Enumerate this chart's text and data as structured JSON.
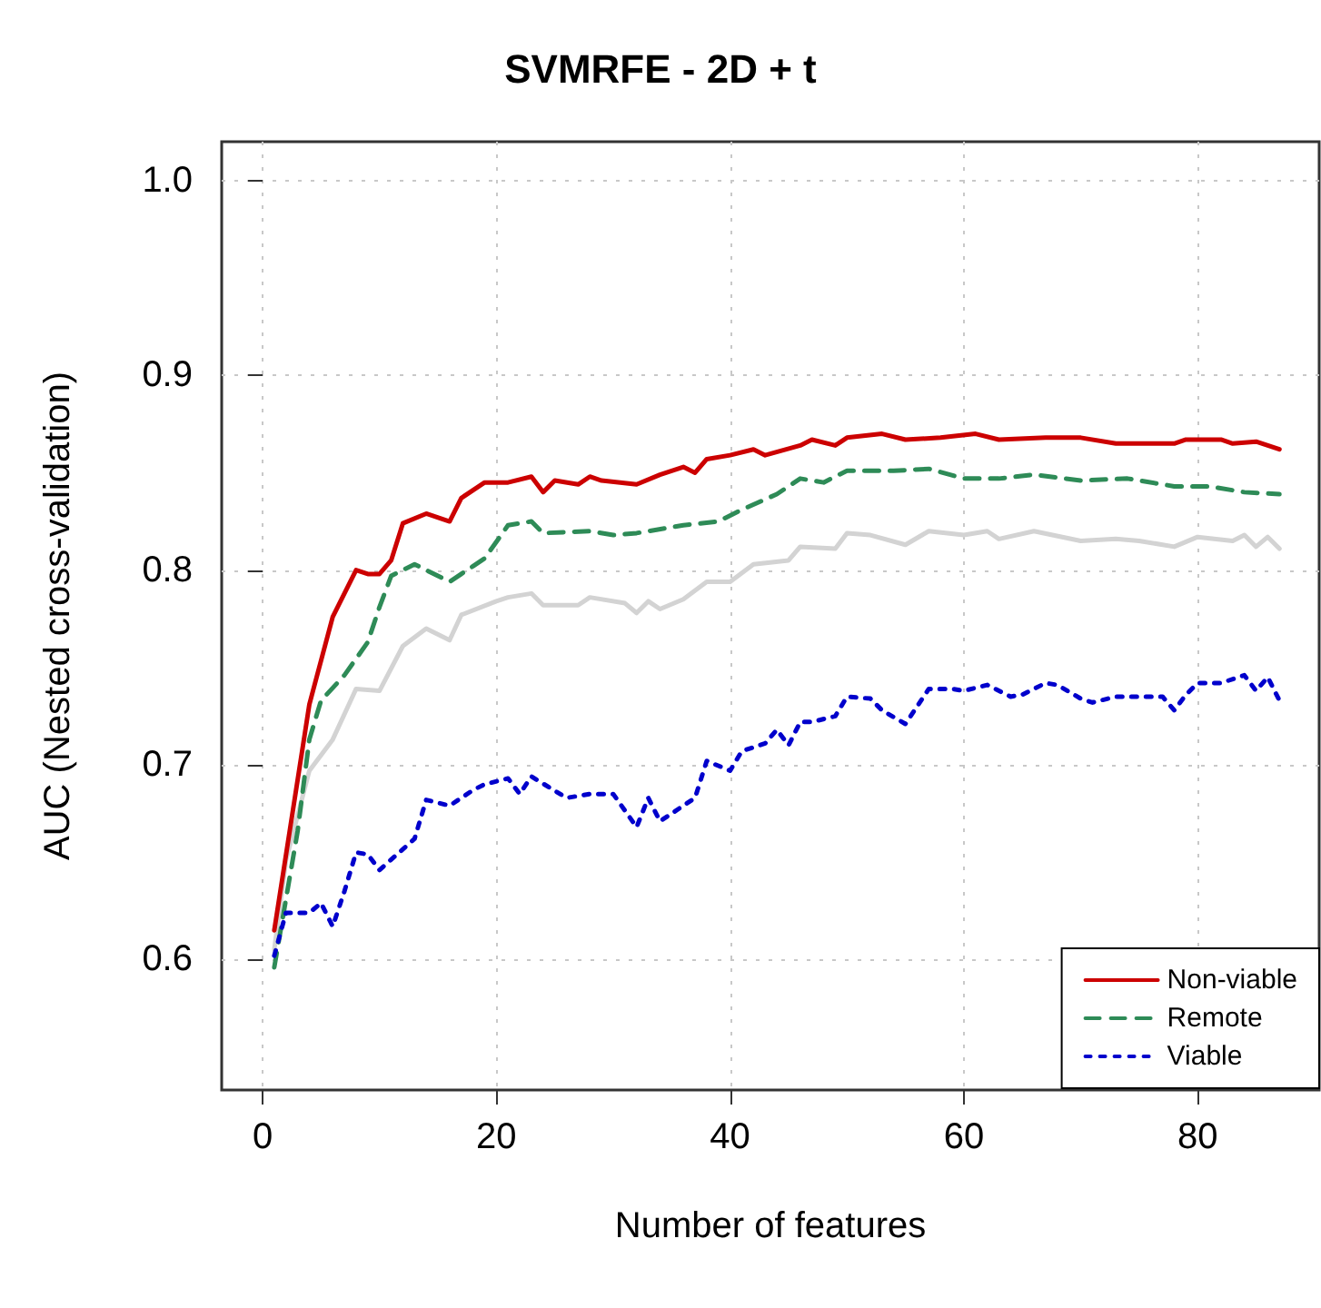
{
  "chart_data": {
    "type": "line",
    "title": "SVMRFE - 2D + t",
    "xlabel": "Number of features",
    "ylabel": "AUC (Nested cross-validation)",
    "xlim": [
      -3.5,
      90.4
    ],
    "xticks": [
      0,
      20,
      40,
      60,
      80
    ],
    "ylim": [
      0.533,
      1.02
    ],
    "yticks": [
      {
        "value": 0.6,
        "label": "0.6"
      },
      {
        "value": 0.7,
        "label": "0.7"
      },
      {
        "value": 0.8,
        "label": "0.8"
      },
      {
        "value": 0.9,
        "label": "0.9"
      },
      {
        "value": 1.0,
        "label": "1.0"
      }
    ],
    "grid": true,
    "legend": "bottom right",
    "marker": "none",
    "series": [
      {
        "name": "Non-viable",
        "color": "#cc0000",
        "line_style": "solid",
        "x": [
          1,
          4,
          6,
          8,
          9,
          10,
          11,
          12,
          14,
          16,
          17,
          19,
          21,
          23,
          24,
          25,
          27,
          28,
          29,
          32,
          34,
          36,
          37,
          38,
          40,
          42,
          43,
          46,
          47,
          49,
          50,
          53,
          55,
          58,
          61,
          63,
          67,
          70,
          73,
          78,
          79,
          82,
          83,
          85,
          87
        ],
        "values": [
          0.615,
          0.731,
          0.776,
          0.8,
          0.798,
          0.798,
          0.805,
          0.824,
          0.829,
          0.825,
          0.837,
          0.845,
          0.845,
          0.848,
          0.84,
          0.846,
          0.844,
          0.848,
          0.846,
          0.844,
          0.849,
          0.853,
          0.85,
          0.857,
          0.859,
          0.862,
          0.859,
          0.864,
          0.867,
          0.864,
          0.868,
          0.87,
          0.867,
          0.868,
          0.87,
          0.867,
          0.868,
          0.868,
          0.865,
          0.865,
          0.867,
          0.867,
          0.865,
          0.866,
          0.862
        ]
      },
      {
        "name": "Remote",
        "color": "#2e8b57",
        "line_style": "dashed",
        "x": [
          1,
          3,
          4,
          5,
          7,
          9,
          10,
          11,
          13,
          16,
          18,
          19,
          21,
          23,
          24,
          28,
          30,
          32,
          36,
          39,
          41,
          44,
          46,
          48,
          50,
          54,
          57,
          60,
          63,
          66,
          70,
          74,
          78,
          81,
          84,
          87
        ],
        "values": [
          0.596,
          0.666,
          0.713,
          0.733,
          0.746,
          0.763,
          0.781,
          0.797,
          0.803,
          0.794,
          0.802,
          0.806,
          0.823,
          0.825,
          0.819,
          0.82,
          0.818,
          0.819,
          0.823,
          0.825,
          0.831,
          0.839,
          0.847,
          0.845,
          0.851,
          0.851,
          0.852,
          0.847,
          0.847,
          0.849,
          0.846,
          0.847,
          0.843,
          0.843,
          0.84,
          0.839
        ]
      },
      {
        "color": "#d3d3d3",
        "line_style": "solid",
        "x": [
          1,
          2,
          4,
          6,
          8,
          10,
          12,
          14,
          16,
          17,
          20,
          21,
          23,
          24,
          27,
          28,
          31,
          32,
          33,
          34,
          36,
          38,
          40,
          42,
          45,
          46,
          49,
          50,
          52,
          55,
          57,
          60,
          62,
          63,
          66,
          70,
          73,
          75,
          78,
          80,
          83,
          84,
          85,
          86,
          87
        ],
        "values": [
          0.605,
          0.651,
          0.697,
          0.713,
          0.739,
          0.738,
          0.761,
          0.77,
          0.764,
          0.777,
          0.784,
          0.786,
          0.788,
          0.782,
          0.782,
          0.786,
          0.783,
          0.778,
          0.784,
          0.78,
          0.785,
          0.794,
          0.794,
          0.803,
          0.805,
          0.812,
          0.811,
          0.819,
          0.818,
          0.813,
          0.82,
          0.818,
          0.82,
          0.816,
          0.82,
          0.815,
          0.816,
          0.815,
          0.812,
          0.817,
          0.815,
          0.818,
          0.812,
          0.817,
          0.811
        ]
      },
      {
        "name": "Viable",
        "color": "#0000cc",
        "line_style": "dotted",
        "x": [
          1,
          2,
          4,
          5,
          6,
          7,
          8,
          9,
          10,
          13,
          14,
          16,
          18,
          19,
          21,
          22,
          23,
          26,
          28,
          30,
          32,
          33,
          34,
          36,
          37,
          38,
          40,
          41,
          43,
          44,
          45,
          46,
          47,
          49,
          50,
          52,
          53,
          55,
          56,
          57,
          59,
          60,
          62,
          64,
          65,
          67,
          68,
          70,
          71,
          73,
          75,
          77,
          78,
          79,
          80,
          82,
          84,
          85,
          86,
          87
        ],
        "values": [
          0.602,
          0.624,
          0.624,
          0.629,
          0.617,
          0.635,
          0.655,
          0.654,
          0.646,
          0.662,
          0.682,
          0.679,
          0.687,
          0.69,
          0.693,
          0.685,
          0.694,
          0.683,
          0.685,
          0.685,
          0.668,
          0.683,
          0.671,
          0.679,
          0.683,
          0.702,
          0.697,
          0.707,
          0.711,
          0.718,
          0.71,
          0.722,
          0.722,
          0.725,
          0.735,
          0.734,
          0.728,
          0.721,
          0.73,
          0.739,
          0.739,
          0.738,
          0.741,
          0.735,
          0.736,
          0.742,
          0.741,
          0.734,
          0.732,
          0.735,
          0.735,
          0.735,
          0.728,
          0.736,
          0.742,
          0.742,
          0.746,
          0.738,
          0.745,
          0.733
        ]
      }
    ]
  }
}
